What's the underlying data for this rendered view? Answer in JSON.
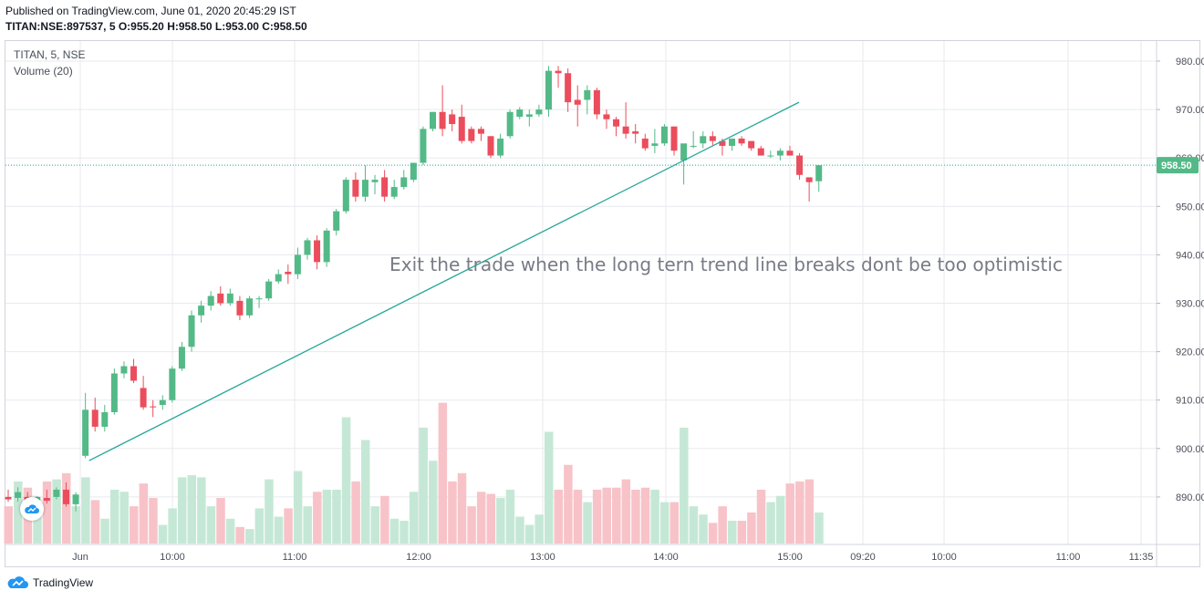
{
  "header": {
    "published": "Published on TradingView.com, June 01, 2020 20:45:29 IST",
    "ohlc_line": "TITAN:NSE:897537, 5  O:955.20 H:958.50 L:953.00 C:958.50"
  },
  "legend": {
    "symbol": "TITAN, 5, NSE",
    "volume": "Volume (20)"
  },
  "annotation": "Exit the trade when the long tern trend line breaks dont be too optimistic",
  "footer": {
    "brand": "TradingView"
  },
  "colors": {
    "up": "#53b987",
    "down": "#eb4d5c",
    "up_volume": "#c5e8d6",
    "down_volume": "#f7c3c8",
    "trend_line": "#26a69a",
    "price_line": "#26a69a",
    "grid": "#e8eaee"
  },
  "chart_data": {
    "type": "candlestick",
    "symbol": "TITAN",
    "interval": "5",
    "exchange": "NSE",
    "last_price": "958.50",
    "y_range": [
      881,
      985
    ],
    "y_ticks": [
      "980.00",
      "970.00",
      "960.00",
      "950.00",
      "940.00",
      "930.00",
      "920.00",
      "910.00",
      "900.00",
      "890.00"
    ],
    "x_ticks": [
      "Jun",
      "10:00",
      "11:00",
      "12:00",
      "13:00",
      "14:00",
      "15:00",
      "09:20",
      "10:00",
      "11:00",
      "11:35"
    ],
    "candles": [
      {
        "o": 890,
        "h": 891.5,
        "l": 889,
        "c": 889.5,
        "v": 18
      },
      {
        "o": 889.8,
        "h": 892,
        "l": 889,
        "c": 891,
        "v": 30
      },
      {
        "o": 890,
        "h": 891,
        "l": 888.5,
        "c": 889.2,
        "v": 27
      },
      {
        "o": 889,
        "h": 890.2,
        "l": 887.5,
        "c": 890,
        "v": 18
      },
      {
        "o": 889.8,
        "h": 891.5,
        "l": 888.6,
        "c": 889.2,
        "v": 30
      },
      {
        "o": 890,
        "h": 892,
        "l": 889.5,
        "c": 891.5,
        "v": 31
      },
      {
        "o": 891.5,
        "h": 893,
        "l": 888,
        "c": 888.5,
        "v": 34
      },
      {
        "o": 888.5,
        "h": 891,
        "l": 887,
        "c": 890.5,
        "v": 18
      },
      {
        "o": 898.5,
        "h": 911.5,
        "l": 898,
        "c": 908,
        "v": 32
      },
      {
        "o": 908,
        "h": 910.5,
        "l": 903.5,
        "c": 904.5,
        "v": 21
      },
      {
        "o": 904.5,
        "h": 909,
        "l": 903.5,
        "c": 907.5,
        "v": 12
      },
      {
        "o": 907.5,
        "h": 916.5,
        "l": 907,
        "c": 915.5,
        "v": 26
      },
      {
        "o": 915.5,
        "h": 918,
        "l": 914.5,
        "c": 917,
        "v": 25
      },
      {
        "o": 917,
        "h": 918.5,
        "l": 913.5,
        "c": 914,
        "v": 18
      },
      {
        "o": 912.5,
        "h": 915,
        "l": 908,
        "c": 908.5,
        "v": 29
      },
      {
        "o": 908.7,
        "h": 910,
        "l": 906.5,
        "c": 908.5,
        "v": 22
      },
      {
        "o": 909,
        "h": 911,
        "l": 908,
        "c": 910,
        "v": 9
      },
      {
        "o": 910,
        "h": 917,
        "l": 909.5,
        "c": 916.5,
        "v": 17
      },
      {
        "o": 916.5,
        "h": 922,
        "l": 916,
        "c": 921,
        "v": 32
      },
      {
        "o": 921,
        "h": 928.5,
        "l": 920,
        "c": 927.5,
        "v": 33
      },
      {
        "o": 927.5,
        "h": 930.5,
        "l": 926,
        "c": 929.5,
        "v": 32
      },
      {
        "o": 929.5,
        "h": 932.5,
        "l": 928.5,
        "c": 931.5,
        "v": 18
      },
      {
        "o": 932,
        "h": 933.5,
        "l": 929.5,
        "c": 930,
        "v": 22
      },
      {
        "o": 930,
        "h": 933,
        "l": 929.5,
        "c": 932,
        "v": 12
      },
      {
        "o": 930.5,
        "h": 931.5,
        "l": 926.5,
        "c": 927.5,
        "v": 8
      },
      {
        "o": 927.5,
        "h": 931.5,
        "l": 927,
        "c": 931,
        "v": 7
      },
      {
        "o": 931,
        "h": 931.5,
        "l": 929,
        "c": 931,
        "v": 17
      },
      {
        "o": 931,
        "h": 935,
        "l": 930.5,
        "c": 934.5,
        "v": 31
      },
      {
        "o": 934.5,
        "h": 937,
        "l": 934,
        "c": 936,
        "v": 13
      },
      {
        "o": 936.5,
        "h": 938,
        "l": 934,
        "c": 936,
        "v": 17
      },
      {
        "o": 936,
        "h": 941.5,
        "l": 935,
        "c": 940,
        "v": 35
      },
      {
        "o": 940,
        "h": 943.5,
        "l": 939,
        "c": 943,
        "v": 18
      },
      {
        "o": 943,
        "h": 944,
        "l": 937,
        "c": 938.5,
        "v": 25
      },
      {
        "o": 938.5,
        "h": 945.5,
        "l": 937.5,
        "c": 945,
        "v": 26
      },
      {
        "o": 945,
        "h": 949.5,
        "l": 944,
        "c": 949,
        "v": 26
      },
      {
        "o": 949,
        "h": 956,
        "l": 948.5,
        "c": 955.5,
        "v": 61
      },
      {
        "o": 955.5,
        "h": 957,
        "l": 951,
        "c": 952,
        "v": 30
      },
      {
        "o": 952,
        "h": 958.5,
        "l": 951,
        "c": 955.5,
        "v": 50
      },
      {
        "o": 955,
        "h": 956.5,
        "l": 952.5,
        "c": 955.5,
        "v": 18
      },
      {
        "o": 956,
        "h": 957.5,
        "l": 951,
        "c": 952,
        "v": 23
      },
      {
        "o": 952,
        "h": 955.5,
        "l": 951.5,
        "c": 954,
        "v": 12
      },
      {
        "o": 954,
        "h": 957.5,
        "l": 953.5,
        "c": 956,
        "v": 11
      },
      {
        "o": 955.5,
        "h": 959,
        "l": 955,
        "c": 959,
        "v": 25
      },
      {
        "o": 959,
        "h": 966.5,
        "l": 958.5,
        "c": 966,
        "v": 56
      },
      {
        "o": 966,
        "h": 969.5,
        "l": 965.5,
        "c": 969.5,
        "v": 40
      },
      {
        "o": 969.5,
        "h": 975,
        "l": 964.5,
        "c": 966,
        "v": 68
      },
      {
        "o": 969,
        "h": 970,
        "l": 965.5,
        "c": 967,
        "v": 30
      },
      {
        "o": 968.5,
        "h": 971,
        "l": 963,
        "c": 963.5,
        "v": 34
      },
      {
        "o": 966,
        "h": 966.5,
        "l": 963,
        "c": 963.5,
        "v": 18
      },
      {
        "o": 966,
        "h": 966.5,
        "l": 963.5,
        "c": 965,
        "v": 25
      },
      {
        "o": 964.5,
        "h": 964.5,
        "l": 960,
        "c": 960.5,
        "v": 24
      },
      {
        "o": 960.5,
        "h": 965,
        "l": 960,
        "c": 964,
        "v": 22
      },
      {
        "o": 964.5,
        "h": 970,
        "l": 964,
        "c": 969.5,
        "v": 26
      },
      {
        "o": 968.5,
        "h": 970.5,
        "l": 968,
        "c": 970,
        "v": 13
      },
      {
        "o": 968.5,
        "h": 970,
        "l": 966.5,
        "c": 969,
        "v": 9
      },
      {
        "o": 969,
        "h": 971,
        "l": 968.5,
        "c": 970,
        "v": 14
      },
      {
        "o": 970,
        "h": 979,
        "l": 968.5,
        "c": 978,
        "v": 54
      },
      {
        "o": 978,
        "h": 979,
        "l": 974.5,
        "c": 977.5,
        "v": 26
      },
      {
        "o": 977.5,
        "h": 978.5,
        "l": 969.5,
        "c": 971.5,
        "v": 38
      },
      {
        "o": 972,
        "h": 975,
        "l": 966.5,
        "c": 971,
        "v": 26
      },
      {
        "o": 972,
        "h": 975,
        "l": 969,
        "c": 974,
        "v": 20
      },
      {
        "o": 974,
        "h": 974.5,
        "l": 968,
        "c": 969,
        "v": 26
      },
      {
        "o": 969,
        "h": 970,
        "l": 966,
        "c": 968,
        "v": 27
      },
      {
        "o": 968,
        "h": 968.5,
        "l": 964.5,
        "c": 966.5,
        "v": 27
      },
      {
        "o": 966.5,
        "h": 971.5,
        "l": 964,
        "c": 965,
        "v": 31
      },
      {
        "o": 965.5,
        "h": 967,
        "l": 963,
        "c": 965,
        "v": 26
      },
      {
        "o": 964,
        "h": 965,
        "l": 961.5,
        "c": 962,
        "v": 27
      },
      {
        "o": 962.5,
        "h": 966,
        "l": 961,
        "c": 963,
        "v": 26
      },
      {
        "o": 963,
        "h": 967,
        "l": 962.5,
        "c": 966.5,
        "v": 20
      },
      {
        "o": 966.5,
        "h": 966.5,
        "l": 960.5,
        "c": 961.5,
        "v": 20
      },
      {
        "o": 959.5,
        "h": 962,
        "l": 954.5,
        "c": 963,
        "v": 56
      },
      {
        "o": 962.5,
        "h": 965.5,
        "l": 962,
        "c": 962.5,
        "v": 18
      },
      {
        "o": 963,
        "h": 965.5,
        "l": 962,
        "c": 964.5,
        "v": 14
      },
      {
        "o": 964.5,
        "h": 965.5,
        "l": 962.5,
        "c": 963.5,
        "v": 10
      },
      {
        "o": 963.5,
        "h": 964,
        "l": 960.5,
        "c": 962.5,
        "v": 18
      },
      {
        "o": 962.5,
        "h": 964,
        "l": 961.5,
        "c": 964,
        "v": 11
      },
      {
        "o": 964,
        "h": 964.5,
        "l": 962.5,
        "c": 963,
        "v": 11
      },
      {
        "o": 963.5,
        "h": 963.5,
        "l": 961.5,
        "c": 962,
        "v": 15
      },
      {
        "o": 962,
        "h": 962.5,
        "l": 960.5,
        "c": 960.5,
        "v": 26
      },
      {
        "o": 960.5,
        "h": 961.5,
        "l": 960,
        "c": 960.5,
        "v": 20
      },
      {
        "o": 960.5,
        "h": 962,
        "l": 959.5,
        "c": 961.5,
        "v": 23
      },
      {
        "o": 961.5,
        "h": 962.5,
        "l": 960.5,
        "c": 960.5,
        "v": 29
      },
      {
        "o": 960.5,
        "h": 961,
        "l": 955.5,
        "c": 956.5,
        "v": 30
      },
      {
        "o": 956,
        "h": 955.5,
        "l": 951,
        "c": 955,
        "v": 31
      },
      {
        "o": 955.2,
        "h": 958.5,
        "l": 953,
        "c": 958.5,
        "v": 15
      }
    ],
    "trend_line": [
      [
        8,
        897.5
      ],
      [
        81,
        971.5
      ]
    ]
  }
}
